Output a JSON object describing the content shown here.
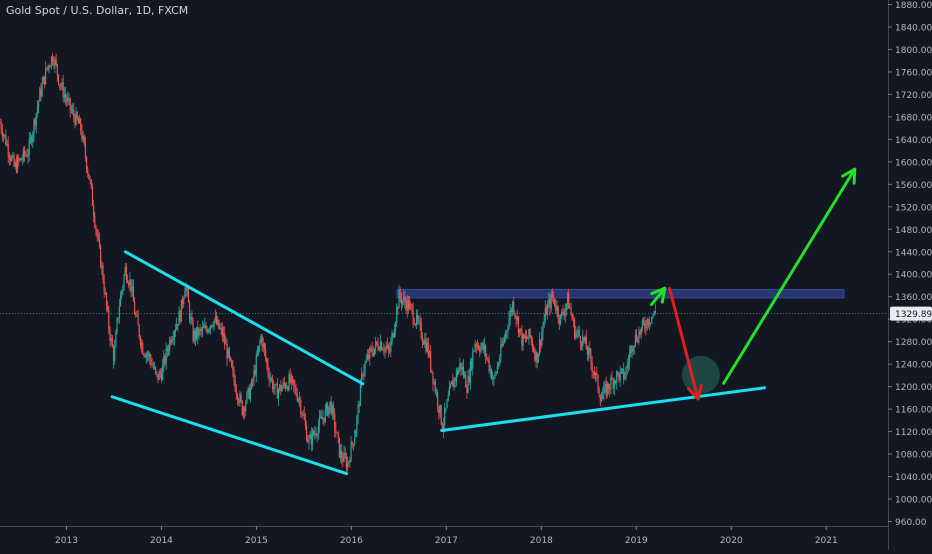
{
  "header": {
    "title": "Gold Spot / U.S. Dollar, 1D, FXCM"
  },
  "colors": {
    "background": "#131722",
    "axis_text": "#b2b5be",
    "candle_up": "#26a69a",
    "candle_down": "#ef5350",
    "trendline": "#18e0ef",
    "resistance_zone": "#2a3a7a",
    "arrow_up": "#22e02a",
    "arrow_down": "#e02020",
    "price_line": "#26a69a",
    "price_label_bg": "#e8ecf0",
    "price_label_text": "#131722",
    "target_circle": "#1f4e4a"
  },
  "chart_data": {
    "type": "candlestick",
    "title": "Gold Spot / U.S. Dollar, 1D, FXCM",
    "xlabel": "",
    "ylabel": "",
    "x_range": [
      2012.3,
      2021.65
    ],
    "ylim": [
      952,
      1888
    ],
    "y_ticks": [
      960,
      1000,
      1040,
      1080,
      1120,
      1160,
      1200,
      1240,
      1280,
      1320,
      1360,
      1400,
      1440,
      1480,
      1520,
      1560,
      1600,
      1640,
      1680,
      1720,
      1760,
      1800,
      1840,
      1880
    ],
    "y_tick_labels": [
      "960.00",
      "1000.00",
      "1040.00",
      "1080.00",
      "1120.00",
      "1160.00",
      "1200.00",
      "1240.00",
      "1280.00",
      "1320.00",
      "1360.00",
      "1400.00",
      "1440.00",
      "1480.00",
      "1520.00",
      "1560.00",
      "1600.00",
      "1640.00",
      "1680.00",
      "1720.00",
      "1760.00",
      "1800.00",
      "1840.00",
      "1880.00"
    ],
    "x_ticks": [
      2013,
      2014,
      2015,
      2016,
      2017,
      2018,
      2019,
      2020,
      2021
    ],
    "x_tick_labels": [
      "2013",
      "2014",
      "2015",
      "2016",
      "2017",
      "2018",
      "2019",
      "2020",
      "2021"
    ],
    "grid": false,
    "current_price": 1329.89,
    "current_price_label": "1329.89",
    "price_path": [
      [
        2012.3,
        1670
      ],
      [
        2012.45,
        1590
      ],
      [
        2012.6,
        1620
      ],
      [
        2012.72,
        1720
      ],
      [
        2012.8,
        1770
      ],
      [
        2012.86,
        1790
      ],
      [
        2012.93,
        1740
      ],
      [
        2013.05,
        1690
      ],
      [
        2013.15,
        1660
      ],
      [
        2013.25,
        1560
      ],
      [
        2013.32,
        1470
      ],
      [
        2013.38,
        1400
      ],
      [
        2013.45,
        1300
      ],
      [
        2013.5,
        1250
      ],
      [
        2013.55,
        1340
      ],
      [
        2013.62,
        1410
      ],
      [
        2013.68,
        1380
      ],
      [
        2013.72,
        1330
      ],
      [
        2013.8,
        1270
      ],
      [
        2013.88,
        1250
      ],
      [
        2013.95,
        1215
      ],
      [
        2014.0,
        1225
      ],
      [
        2014.1,
        1290
      ],
      [
        2014.2,
        1330
      ],
      [
        2014.25,
        1385
      ],
      [
        2014.33,
        1290
      ],
      [
        2014.45,
        1300
      ],
      [
        2014.55,
        1320
      ],
      [
        2014.65,
        1290
      ],
      [
        2014.75,
        1220
      ],
      [
        2014.85,
        1160
      ],
      [
        2014.95,
        1200
      ],
      [
        2015.05,
        1290
      ],
      [
        2015.12,
        1230
      ],
      [
        2015.2,
        1190
      ],
      [
        2015.35,
        1210
      ],
      [
        2015.45,
        1180
      ],
      [
        2015.55,
        1100
      ],
      [
        2015.65,
        1130
      ],
      [
        2015.78,
        1170
      ],
      [
        2015.88,
        1080
      ],
      [
        2015.96,
        1062
      ],
      [
        2016.05,
        1130
      ],
      [
        2016.12,
        1230
      ],
      [
        2016.2,
        1260
      ],
      [
        2016.3,
        1280
      ],
      [
        2016.4,
        1260
      ],
      [
        2016.5,
        1360
      ],
      [
        2016.6,
        1345
      ],
      [
        2016.7,
        1310
      ],
      [
        2016.8,
        1270
      ],
      [
        2016.88,
        1200
      ],
      [
        2016.96,
        1130
      ],
      [
        2017.05,
        1200
      ],
      [
        2017.15,
        1240
      ],
      [
        2017.22,
        1200
      ],
      [
        2017.3,
        1280
      ],
      [
        2017.4,
        1265
      ],
      [
        2017.5,
        1210
      ],
      [
        2017.6,
        1280
      ],
      [
        2017.7,
        1350
      ],
      [
        2017.8,
        1280
      ],
      [
        2017.88,
        1290
      ],
      [
        2017.95,
        1250
      ],
      [
        2018.05,
        1335
      ],
      [
        2018.12,
        1360
      ],
      [
        2018.2,
        1320
      ],
      [
        2018.28,
        1355
      ],
      [
        2018.35,
        1300
      ],
      [
        2018.45,
        1280
      ],
      [
        2018.55,
        1230
      ],
      [
        2018.63,
        1180
      ],
      [
        2018.7,
        1200
      ],
      [
        2018.8,
        1220
      ],
      [
        2018.88,
        1220
      ],
      [
        2018.96,
        1280
      ],
      [
        2019.05,
        1300
      ],
      [
        2019.12,
        1320
      ],
      [
        2019.2,
        1330
      ]
    ],
    "annotations": {
      "resistance_zone": {
        "x0": 2016.48,
        "x1": 2021.95,
        "y0": 1358,
        "y1": 1373
      },
      "trendlines": [
        {
          "name": "falling-channel-upper",
          "x0": 2013.62,
          "y0": 1440,
          "x1": 2016.12,
          "y1": 1205
        },
        {
          "name": "falling-channel-lower",
          "x0": 2013.48,
          "y0": 1182,
          "x1": 2015.95,
          "y1": 1045
        },
        {
          "name": "rising-support",
          "x0": 2016.95,
          "y0": 1122,
          "x1": 2020.35,
          "y1": 1198
        }
      ],
      "arrows": [
        {
          "name": "arrow-up-retest",
          "kind": "up",
          "x0": 2019.16,
          "y0": 1346,
          "x1": 2019.3,
          "y1": 1375
        },
        {
          "name": "arrow-down-drop",
          "kind": "down",
          "x0": 2019.35,
          "y0": 1375,
          "x1": 2019.65,
          "y1": 1178
        },
        {
          "name": "arrow-up-target",
          "kind": "up",
          "x0": 2019.92,
          "y0": 1206,
          "x1": 2021.3,
          "y1": 1587
        }
      ],
      "target_circle": {
        "x": 2019.68,
        "y": 1221,
        "r_years": 0.2
      }
    }
  }
}
